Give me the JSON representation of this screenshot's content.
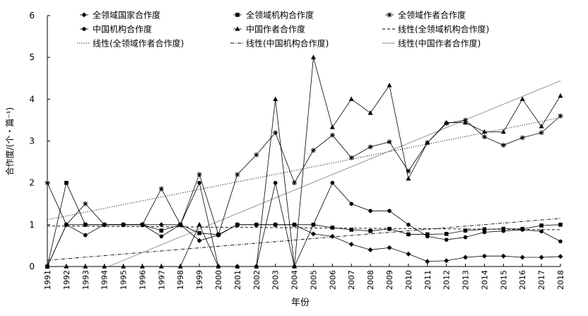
{
  "chart_data": {
    "type": "line",
    "xlabel": "年份",
    "ylabel": "合作度/(个・篇⁻¹)",
    "ylim": [
      0,
      6
    ],
    "yticks": [
      "0",
      "1",
      "2",
      "3",
      "4",
      "5",
      "6"
    ],
    "grid": false,
    "legend_position": "top",
    "x": [
      "1991",
      "1992",
      "1993",
      "1994",
      "1995",
      "1996",
      "1997",
      "1998",
      "1999",
      "2000",
      "2001",
      "2002",
      "2003",
      "2004",
      "2005",
      "2006",
      "2007",
      "2008",
      "2009",
      "2010",
      "2011",
      "2012",
      "2013",
      "2014",
      "2015",
      "2016",
      "2017",
      "2018"
    ],
    "series": [
      {
        "name": "全领域国家合作度",
        "marker": "diamond",
        "values": [
          0,
          1,
          1,
          1,
          1,
          1,
          1,
          1,
          0.62,
          0.75,
          1,
          1,
          1,
          1,
          0.78,
          0.72,
          0.53,
          0.4,
          0.45,
          0.3,
          0.12,
          0.14,
          0.22,
          0.25,
          0.25,
          0.22,
          0.22,
          0.24
        ]
      },
      {
        "name": "全领域机构合作度",
        "marker": "square",
        "values": [
          0,
          2,
          1,
          1,
          1,
          1,
          0.86,
          1,
          0.8,
          0.76,
          1,
          1,
          1,
          1,
          1,
          0.93,
          0.88,
          0.85,
          0.9,
          0.77,
          0.77,
          0.78,
          0.86,
          0.89,
          0.9,
          0.9,
          0.98,
          1
        ]
      },
      {
        "name": "全领域作者合作度",
        "marker": "star",
        "values": [
          2,
          1,
          1.5,
          1,
          1,
          1,
          1.86,
          1,
          2.2,
          0.76,
          2.2,
          2.67,
          3.2,
          2,
          2.78,
          3.14,
          2.6,
          2.86,
          2.98,
          2.28,
          2.96,
          3.42,
          3.5,
          3.1,
          2.9,
          3.08,
          3.2,
          3.6
        ]
      },
      {
        "name": "中国机构合作度",
        "marker": "circle",
        "values": [
          0,
          1,
          0.75,
          1,
          1,
          1,
          0.72,
          1,
          2,
          0,
          0,
          0,
          2,
          0,
          1,
          2,
          1.5,
          1.33,
          1.33,
          1,
          0.72,
          0.64,
          0.7,
          0.82,
          0.85,
          0.88,
          0.84,
          0.6
        ]
      },
      {
        "name": "中国作者合作度",
        "marker": "triangle",
        "values": [
          0,
          0,
          0,
          0,
          0,
          0,
          0,
          0,
          1,
          0,
          0,
          0,
          4,
          0,
          5,
          3.33,
          4,
          3.67,
          4.33,
          2.1,
          2.96,
          3.44,
          3.44,
          3.22,
          3.22,
          4,
          3.35,
          4.08
        ]
      }
    ],
    "trendlines": [
      {
        "name": "线性(全领域机构合作度)",
        "style": "dashed",
        "y_start": 0.97,
        "y_end": 0.88
      },
      {
        "name": "线性(全领域作者合作度)",
        "style": "dotted",
        "y_start": 1.12,
        "y_end": 3.56
      },
      {
        "name": "线性(中国机构合作度)",
        "style": "dashdot",
        "y_start": 0.15,
        "y_end": 1.15
      },
      {
        "name": "线性(中国作者合作度)",
        "style": "solid-light",
        "y_start": -0.6,
        "y_end": 4.44
      }
    ],
    "legend": [
      {
        "label": "全领域国家合作度",
        "kind": "marker",
        "marker": "diamond"
      },
      {
        "label": "全领域机构合作度",
        "kind": "marker",
        "marker": "square"
      },
      {
        "label": "全领域作者合作度",
        "kind": "marker",
        "marker": "star"
      },
      {
        "label": "中国机构合作度",
        "kind": "marker",
        "marker": "circle"
      },
      {
        "label": "中国作者合作度",
        "kind": "marker",
        "marker": "triangle"
      },
      {
        "label": "线性(全领域机构合作度)",
        "kind": "line",
        "style": "dashed"
      },
      {
        "label": "线性(全领域作者合作度)",
        "kind": "line",
        "style": "dotted"
      },
      {
        "label": "线性(中国机构合作度)",
        "kind": "line",
        "style": "dashdot"
      },
      {
        "label": "线性(中国作者合作度)",
        "kind": "line",
        "style": "solid-light"
      }
    ],
    "colors": {
      "axis": "#000000",
      "series": "#000000",
      "trend_light": "#8a8a8a"
    }
  }
}
